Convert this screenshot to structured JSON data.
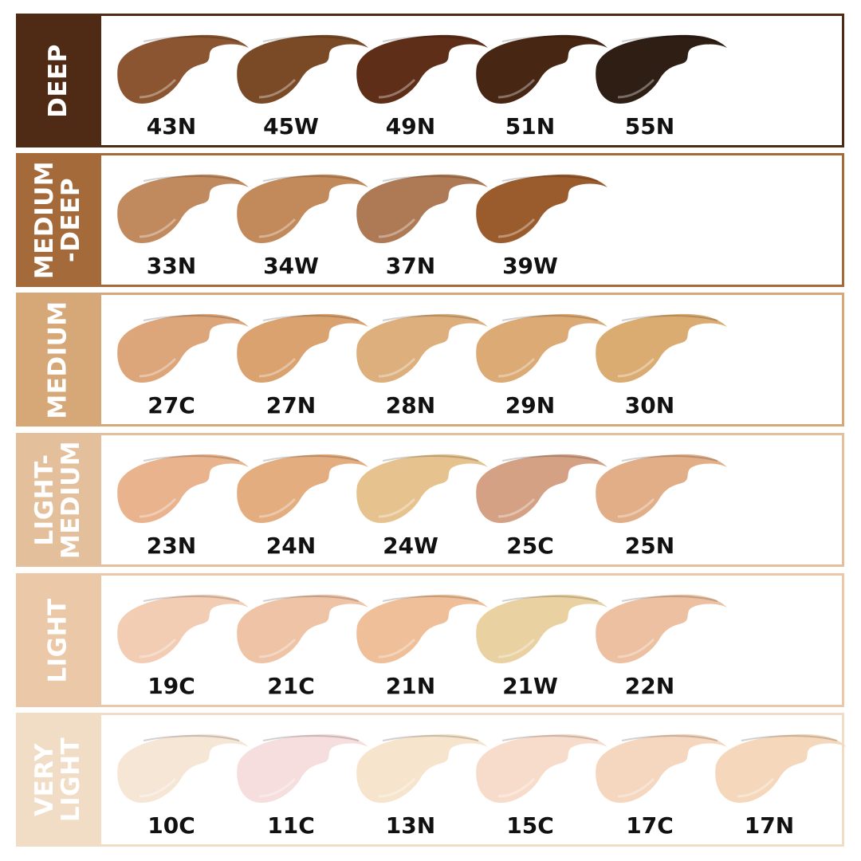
{
  "groups": [
    {
      "label": "DEEP",
      "color": "#4f2a14",
      "shades": [
        {
          "name": "43N",
          "color": "#8a5530"
        },
        {
          "name": "45W",
          "color": "#7a4a26"
        },
        {
          "name": "49N",
          "color": "#5e2e18"
        },
        {
          "name": "51N",
          "color": "#472614"
        },
        {
          "name": "55N",
          "color": "#2e1e14"
        }
      ]
    },
    {
      "label": "MEDIUM\n-DEEP",
      "color": "#a46a3a",
      "shades": [
        {
          "name": "33N",
          "color": "#c08a5e"
        },
        {
          "name": "34W",
          "color": "#c2895a"
        },
        {
          "name": "37N",
          "color": "#ae7a55"
        },
        {
          "name": "39W",
          "color": "#9a5c2c"
        }
      ]
    },
    {
      "label": "MEDIUM",
      "color": "#d6a878",
      "shades": [
        {
          "name": "27C",
          "color": "#dca57a"
        },
        {
          "name": "27N",
          "color": "#d9a26f"
        },
        {
          "name": "28N",
          "color": "#dcaf7c"
        },
        {
          "name": "29N",
          "color": "#dcaa74"
        },
        {
          "name": "30N",
          "color": "#dbac72"
        }
      ]
    },
    {
      "label": "LIGHT-\nMEDIUM",
      "color": "#e3bf9b",
      "shades": [
        {
          "name": "23N",
          "color": "#e8b38d"
        },
        {
          "name": "24N",
          "color": "#e3ad80"
        },
        {
          "name": "24W",
          "color": "#e6c38e"
        },
        {
          "name": "25C",
          "color": "#d4a184"
        },
        {
          "name": "25N",
          "color": "#e1ae88"
        }
      ]
    },
    {
      "label": "LIGHT",
      "color": "#ebc8a8",
      "shades": [
        {
          "name": "19C",
          "color": "#f2cdb4"
        },
        {
          "name": "21C",
          "color": "#eec3a6"
        },
        {
          "name": "21N",
          "color": "#eebf98"
        },
        {
          "name": "21W",
          "color": "#e9d1a2"
        },
        {
          "name": "22N",
          "color": "#ecc0a0"
        }
      ]
    },
    {
      "label": "VERY\nLIGHT",
      "color": "#f1dcc5",
      "shades": [
        {
          "name": "10C",
          "color": "#f6e6d6"
        },
        {
          "name": "11C",
          "color": "#f6dede"
        },
        {
          "name": "13N",
          "color": "#f6e4cc"
        },
        {
          "name": "15C",
          "color": "#f8dccb"
        },
        {
          "name": "17C",
          "color": "#f5d6bf"
        },
        {
          "name": "17N",
          "color": "#f5d8bb"
        }
      ]
    }
  ]
}
